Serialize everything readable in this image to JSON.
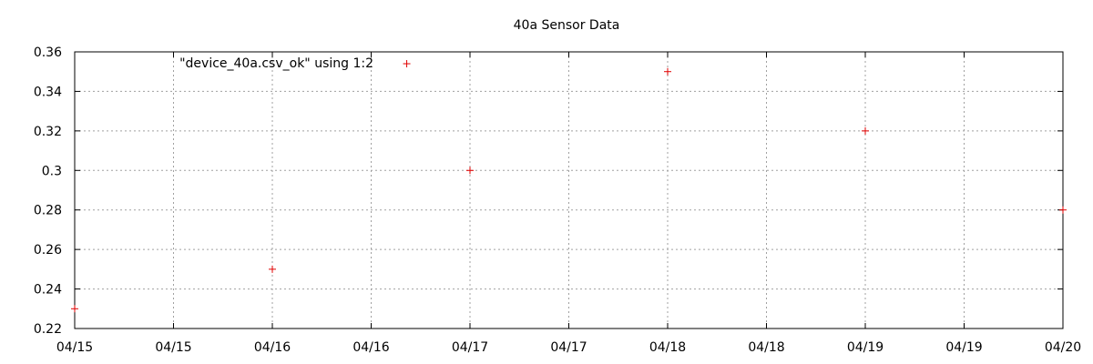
{
  "chart_data": {
    "type": "scatter",
    "title": "40a Sensor Data",
    "xlabel": "",
    "ylabel": "",
    "x_tick_labels": [
      "04/15",
      "04/15",
      "04/16",
      "04/16",
      "04/17",
      "04/17",
      "04/18",
      "04/18",
      "04/19",
      "04/19",
      "04/20"
    ],
    "y_tick_labels": [
      "0.22",
      "0.24",
      "0.26",
      "0.28",
      "0.3",
      "0.32",
      "0.34",
      "0.36"
    ],
    "ylim": [
      0.22,
      0.36
    ],
    "xlim": [
      0,
      5
    ],
    "grid": true,
    "legend_position": "top-left",
    "series": [
      {
        "name": "\"device_40a.csv_ok\" using 1:2",
        "color": "#e00000",
        "marker": "plus",
        "x": [
          0,
          1,
          1.68,
          2,
          3,
          4,
          5
        ],
        "y": [
          0.23,
          0.25,
          0.354,
          0.3,
          0.35,
          0.32,
          0.28
        ]
      }
    ]
  }
}
